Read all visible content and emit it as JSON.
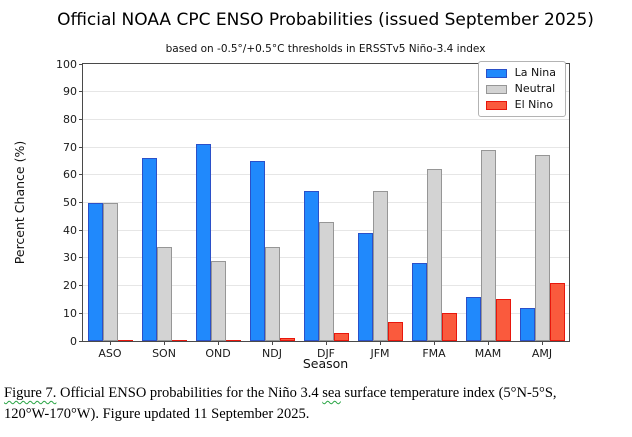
{
  "figure": {
    "title": "Official NOAA CPC ENSO Probabilities (issued September 2025)",
    "subtitle": "based on -0.5°/+0.5°C thresholds in ERSSTv5 Niño-3.4 index"
  },
  "chart_data": {
    "type": "bar",
    "title": "Official NOAA CPC ENSO Probabilities (issued September 2025)",
    "subtitle": "based on -0.5°/+0.5°C thresholds in ERSSTv5 Niño-3.4 index",
    "categories": [
      "ASO",
      "SON",
      "OND",
      "NDJ",
      "DJF",
      "JFM",
      "FMA",
      "MAM",
      "AMJ"
    ],
    "series": [
      {
        "name": "La Nina",
        "color": "#2089fc",
        "edge": "#2b50c8",
        "values": [
          50,
          66,
          71,
          65,
          54,
          39,
          28,
          16,
          12
        ]
      },
      {
        "name": "Neutral",
        "color": "#d3d3d3",
        "edge": "#969696",
        "values": [
          50,
          34,
          29,
          34,
          43,
          54,
          62,
          69,
          67
        ]
      },
      {
        "name": "El Nino",
        "color": "#fa5a3d",
        "edge": "#e8160c",
        "values": [
          0,
          0,
          0,
          1,
          3,
          7,
          10,
          15,
          21
        ]
      }
    ],
    "xlabel": "Season",
    "ylabel": "Percent Chance (%)",
    "ylim": [
      0,
      100
    ],
    "ytick_step": 10,
    "grid": true,
    "legend_position": "upper right"
  },
  "caption": {
    "seg_figure": "Figure 7.",
    "seg_mid": " Official ENSO probabilities for the Niño 3.4 ",
    "seg_sea": "sea",
    "seg_tail": " surface temperature index (5°N-5°S,",
    "line2": "120°W-170°W). Figure updated 11 September 2025."
  },
  "colors": {
    "squiggle_green": "#27a343",
    "gridline": "#e6e6e6",
    "spine": "#4a4a4a"
  }
}
